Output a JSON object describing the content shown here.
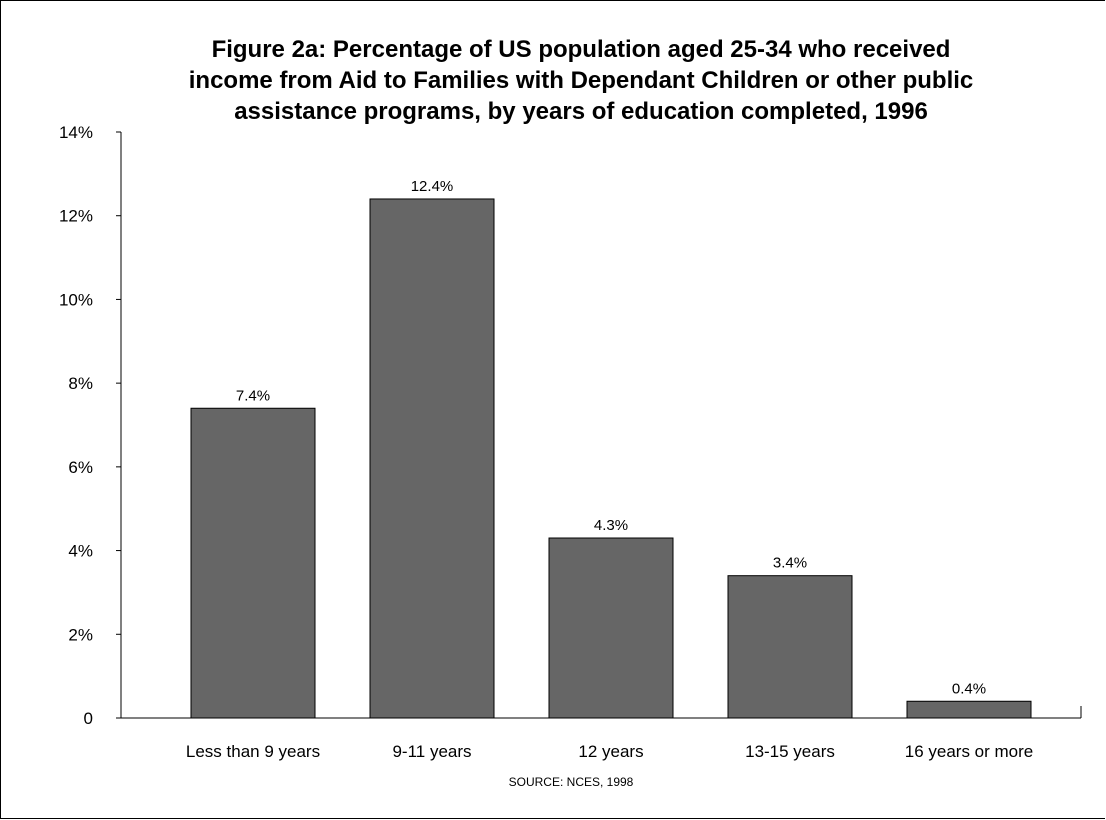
{
  "chart_data": {
    "type": "bar",
    "title_lines": [
      "Figure 2a: Percentage of US population aged 25-34 who received",
      "income from Aid to Families with Dependant Children or other public",
      "assistance programs, by years of education completed, 1996"
    ],
    "categories": [
      "Less than 9 years",
      "9-11 years",
      "12 years",
      "13-15 years",
      "16 years or more"
    ],
    "values": [
      7.4,
      12.4,
      4.3,
      3.4,
      0.4
    ],
    "value_labels": [
      "7.4%",
      "12.4%",
      "4.3%",
      "3.4%",
      "0.4%"
    ],
    "ylim": [
      0,
      14
    ],
    "yticks": [
      0,
      2,
      4,
      6,
      8,
      10,
      12,
      14
    ],
    "ytick_labels": [
      "0",
      "2%",
      "4%",
      "6%",
      "8%",
      "10%",
      "12%",
      "14%"
    ],
    "xlabel": "",
    "ylabel": "",
    "grid": false,
    "bar_color": "#666666",
    "source": "SOURCE: NCES, 1998"
  }
}
